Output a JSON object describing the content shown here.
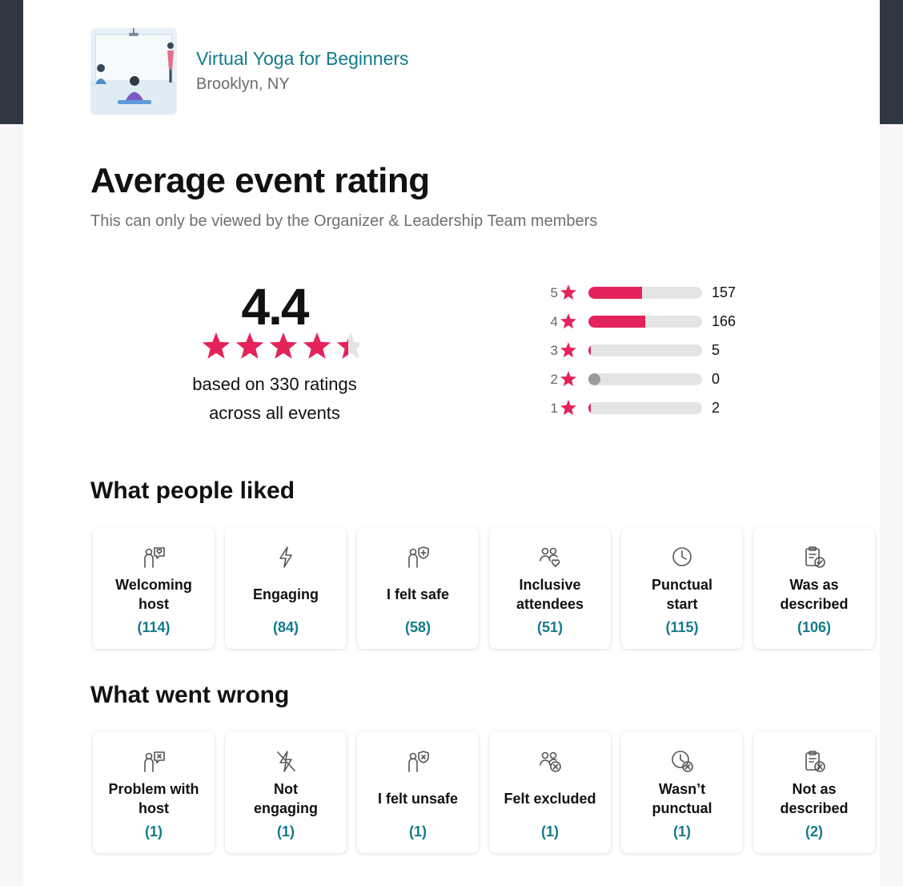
{
  "event": {
    "title": "Virtual Yoga for Beginners",
    "location": "Brooklyn, NY"
  },
  "heading": "Average event rating",
  "subheading": "This can only be viewed by the Organizer & Leadership Team members",
  "summary": {
    "rating": "4.4",
    "rating_value": 4.4,
    "based_on": "based on 330 ratings",
    "across": "across all events"
  },
  "colors": {
    "accent": "#e32359",
    "teal": "#127b8a"
  },
  "distribution": [
    {
      "stars": "5",
      "count": "157",
      "fill_fraction": 0.47
    },
    {
      "stars": "4",
      "count": "166",
      "fill_fraction": 0.5
    },
    {
      "stars": "3",
      "count": "5",
      "fill_fraction": 0.02
    },
    {
      "stars": "2",
      "count": "0",
      "fill_fraction": 0
    },
    {
      "stars": "1",
      "count": "2",
      "fill_fraction": 0.01
    }
  ],
  "liked": {
    "title": "What people liked",
    "items": [
      {
        "line1": "Welcoming",
        "line2": "host",
        "count": "(114)",
        "icon": "welcoming-host-icon"
      },
      {
        "line1": "Engaging",
        "line2": "",
        "count": "(84)",
        "icon": "lightning-icon"
      },
      {
        "line1": "I felt safe",
        "line2": "",
        "count": "(58)",
        "icon": "shield-plus-icon"
      },
      {
        "line1": "Inclusive",
        "line2": "attendees",
        "count": "(51)",
        "icon": "people-heart-icon"
      },
      {
        "line1": "Punctual",
        "line2": "start",
        "count": "(115)",
        "icon": "clock-icon"
      },
      {
        "line1": "Was as",
        "line2": "described",
        "count": "(106)",
        "icon": "clipboard-check-icon"
      }
    ]
  },
  "wrong": {
    "title": "What went wrong",
    "items": [
      {
        "line1": "Problem with",
        "line2": "host",
        "count": "(1)",
        "icon": "host-problem-icon"
      },
      {
        "line1": "Not",
        "line2": "engaging",
        "count": "(1)",
        "icon": "lightning-off-icon"
      },
      {
        "line1": "I felt unsafe",
        "line2": "",
        "count": "(1)",
        "icon": "shield-x-icon"
      },
      {
        "line1": "Felt excluded",
        "line2": "",
        "count": "(1)",
        "icon": "people-x-icon"
      },
      {
        "line1": "Wasn’t",
        "line2": "punctual",
        "count": "(1)",
        "icon": "clock-x-icon"
      },
      {
        "line1": "Not as",
        "line2": "described",
        "count": "(2)",
        "icon": "clipboard-x-icon"
      }
    ]
  }
}
